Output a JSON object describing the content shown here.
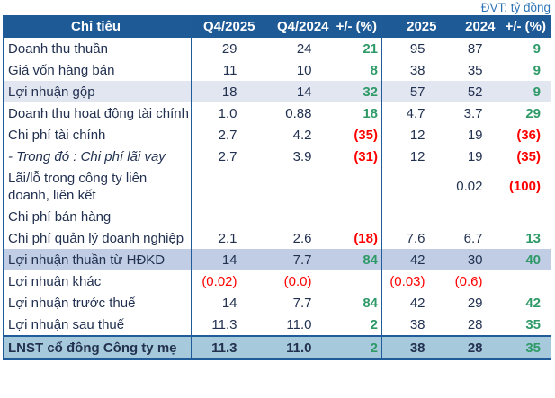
{
  "unit_label": "ĐVT: tỷ đồng",
  "colors": {
    "header_bg": "#1E5A96",
    "header_text": "#FFFFFF",
    "border": "#1F5C99",
    "body_text": "#223150",
    "positive_green": "#2F9A68",
    "negative_red": "#FF0000",
    "unit_text": "#2E74B5",
    "highlight_light": "#E2E6F0",
    "highlight_medium": "#C0CDE4",
    "total_row_bg": "#A6CADC"
  },
  "chart_data": {
    "type": "table",
    "title": "",
    "unit": "ĐVT: tỷ đồng",
    "columns": [
      "Chỉ tiêu",
      "Q4/2025",
      "Q4/2024",
      "+/- (%)",
      "2025",
      "2024",
      "+/- (%)"
    ],
    "rows": [
      {
        "label": "Doanh thu thuần",
        "style": "normal",
        "italic": false,
        "values": [
          [
            "29",
            ""
          ],
          [
            "24",
            ""
          ],
          [
            "21",
            "g"
          ],
          [
            "95",
            ""
          ],
          [
            "87",
            ""
          ],
          [
            "9",
            "g"
          ]
        ]
      },
      {
        "label": "Giá vốn hàng bán",
        "style": "normal",
        "italic": false,
        "values": [
          [
            "11",
            ""
          ],
          [
            "10",
            ""
          ],
          [
            "8",
            "g"
          ],
          [
            "38",
            ""
          ],
          [
            "35",
            ""
          ],
          [
            "9",
            "g"
          ]
        ]
      },
      {
        "label": "Lợi nhuận gộp",
        "style": "light",
        "italic": false,
        "values": [
          [
            "18",
            ""
          ],
          [
            "14",
            ""
          ],
          [
            "32",
            "g"
          ],
          [
            "57",
            ""
          ],
          [
            "52",
            ""
          ],
          [
            "9",
            "g"
          ]
        ]
      },
      {
        "label": "Doanh thu hoạt động tài chính",
        "style": "normal",
        "italic": false,
        "values": [
          [
            "1.0",
            ""
          ],
          [
            "0.88",
            ""
          ],
          [
            "18",
            "g"
          ],
          [
            "4.7",
            ""
          ],
          [
            "3.7",
            ""
          ],
          [
            "29",
            "g"
          ]
        ]
      },
      {
        "label": "Chi phí tài chính",
        "style": "normal",
        "italic": false,
        "values": [
          [
            "2.7",
            ""
          ],
          [
            "4.2",
            ""
          ],
          [
            "(35)",
            "r"
          ],
          [
            "12",
            ""
          ],
          [
            "19",
            ""
          ],
          [
            "(36)",
            "r"
          ]
        ]
      },
      {
        "label": "- Trong đó : Chi phí lãi vay",
        "style": "normal",
        "italic": true,
        "values": [
          [
            "2.7",
            ""
          ],
          [
            "3.9",
            ""
          ],
          [
            "(31)",
            "r"
          ],
          [
            "12",
            ""
          ],
          [
            "19",
            ""
          ],
          [
            "(35)",
            "r"
          ]
        ]
      },
      {
        "label": "Lãi/lỗ trong công ty liên doanh, liên kết",
        "style": "normal",
        "italic": false,
        "values": [
          [
            "",
            ""
          ],
          [
            "",
            ""
          ],
          [
            "",
            ""
          ],
          [
            "",
            ""
          ],
          [
            "0.02",
            ""
          ],
          [
            "(100)",
            "r"
          ]
        ]
      },
      {
        "label": "Chi phí bán hàng",
        "style": "normal",
        "italic": false,
        "values": [
          [
            "",
            ""
          ],
          [
            "",
            ""
          ],
          [
            "",
            ""
          ],
          [
            "",
            ""
          ],
          [
            "",
            ""
          ],
          [
            "",
            ""
          ]
        ]
      },
      {
        "label": "Chi phí quản lý doanh nghiệp",
        "style": "normal",
        "italic": false,
        "values": [
          [
            "2.1",
            ""
          ],
          [
            "2.6",
            ""
          ],
          [
            "(18)",
            "r"
          ],
          [
            "7.6",
            ""
          ],
          [
            "6.7",
            ""
          ],
          [
            "13",
            "g"
          ]
        ]
      },
      {
        "label": "Lợi nhuận thuần từ HĐKD",
        "style": "medium",
        "italic": false,
        "values": [
          [
            "14",
            ""
          ],
          [
            "7.7",
            ""
          ],
          [
            "84",
            "g"
          ],
          [
            "42",
            ""
          ],
          [
            "30",
            ""
          ],
          [
            "40",
            "g"
          ]
        ]
      },
      {
        "label": "Lợi nhuận khác",
        "style": "normal",
        "italic": false,
        "values": [
          [
            "(0.02)",
            "rn"
          ],
          [
            "(0.0)",
            "rn"
          ],
          [
            "",
            ""
          ],
          [
            "(0.03)",
            "rn"
          ],
          [
            "(0.6)",
            "rn"
          ],
          [
            "",
            ""
          ]
        ]
      },
      {
        "label": "Lợi nhuận trước thuế",
        "style": "normal",
        "italic": false,
        "values": [
          [
            "14",
            ""
          ],
          [
            "7.7",
            ""
          ],
          [
            "84",
            "g"
          ],
          [
            "42",
            ""
          ],
          [
            "29",
            ""
          ],
          [
            "42",
            "g"
          ]
        ]
      },
      {
        "label": "Lợi nhuận sau thuế",
        "style": "normal",
        "italic": false,
        "values": [
          [
            "11.3",
            ""
          ],
          [
            "11.0",
            ""
          ],
          [
            "2",
            "g"
          ],
          [
            "38",
            ""
          ],
          [
            "28",
            ""
          ],
          [
            "35",
            "g"
          ]
        ]
      },
      {
        "label": "LNST cổ đông Công ty mẹ",
        "style": "total",
        "italic": false,
        "values": [
          [
            "11.3",
            ""
          ],
          [
            "11.0",
            ""
          ],
          [
            "2",
            "g"
          ],
          [
            "38",
            ""
          ],
          [
            "28",
            ""
          ],
          [
            "35",
            "g"
          ]
        ]
      }
    ]
  }
}
